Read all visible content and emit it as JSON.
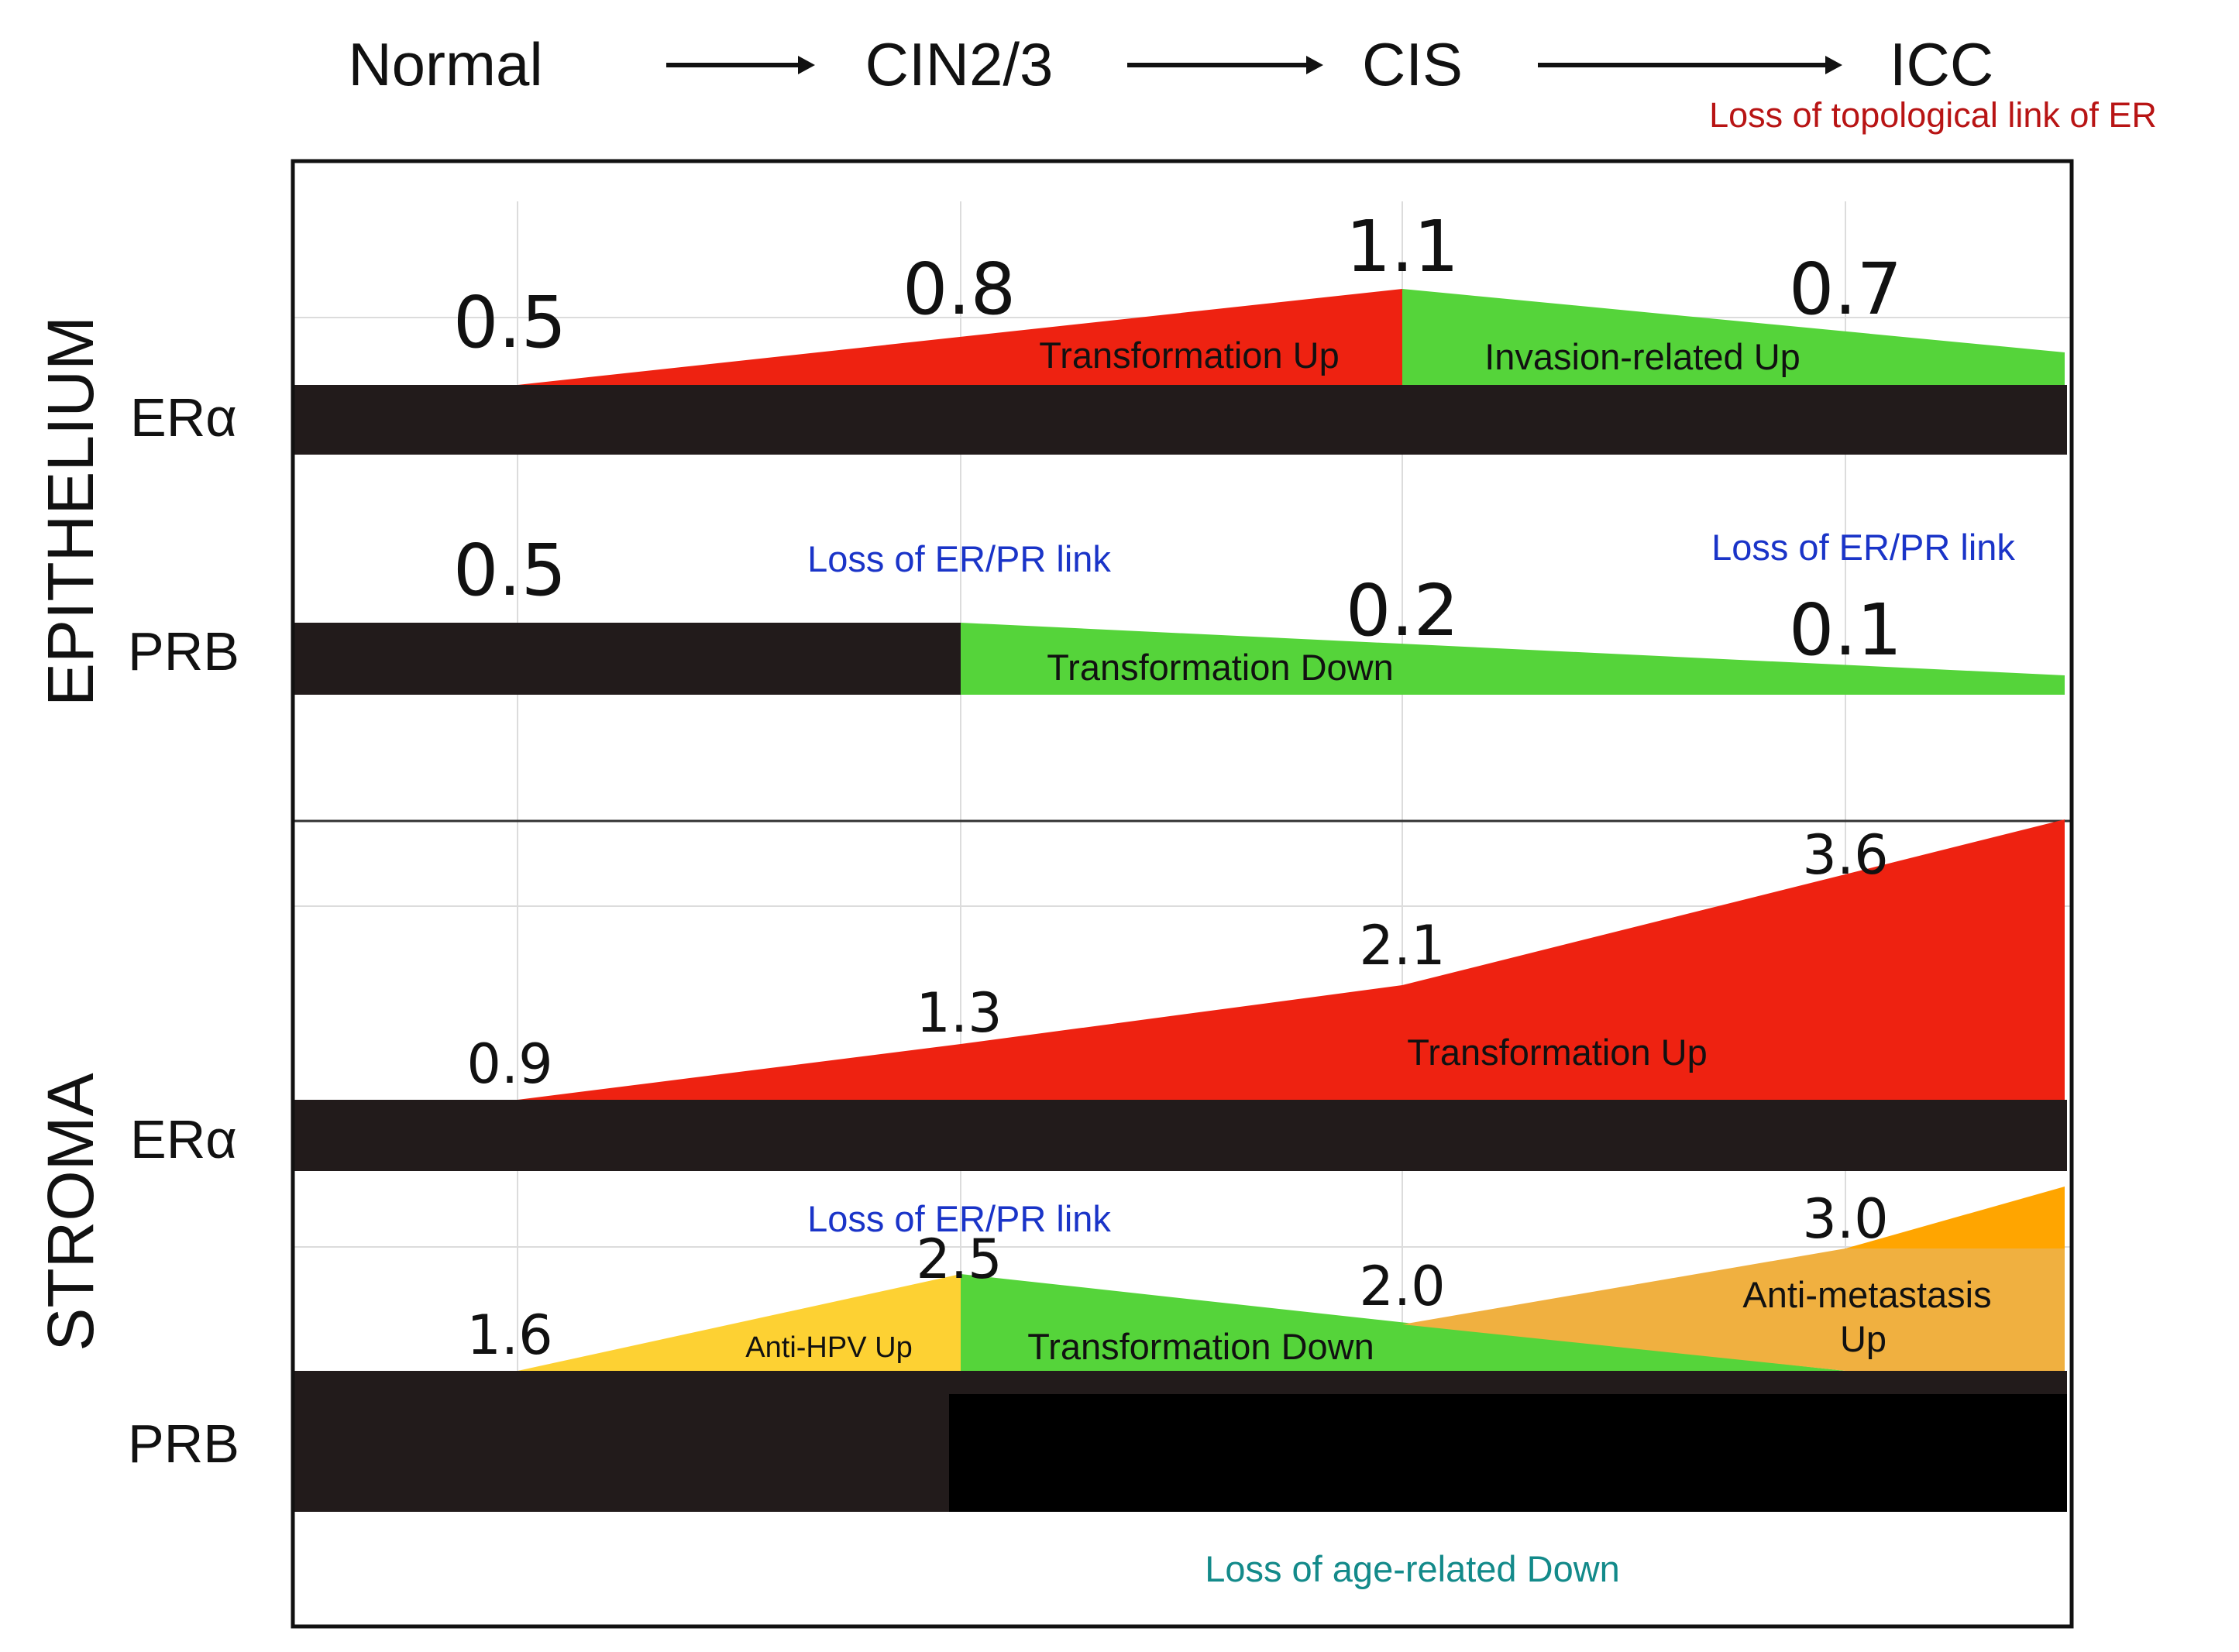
{
  "stages": [
    "Normal",
    "CIN2/3",
    "CIS",
    "ICC"
  ],
  "stage_note": "Loss of topological link of ER",
  "tissues": [
    "EPITHELIUM",
    "STROMA"
  ],
  "colors": {
    "up_red": "#ee2211",
    "down_green": "#55d43a",
    "anti_hpv_yellow": "#fdd133",
    "anti_meta_orange": "#f0b040",
    "anti_meta_tip": "#ffa500",
    "bar_dark": "#221b1b",
    "bar_black": "#000000",
    "note_red": "#b81414",
    "note_blue": "#1a34c8",
    "note_teal": "#138a8a",
    "frame": "#111111"
  },
  "tracks": {
    "epi_er": {
      "label": "ERα",
      "values": [
        "0.5",
        "0.8",
        "1.1",
        "0.7"
      ],
      "annotations": [
        "Transformation Up",
        "Invasion-related Up"
      ]
    },
    "epi_prb": {
      "label": "PRB",
      "values": [
        "0.5",
        "0.2",
        "0.1"
      ],
      "annotations": [
        "Transformation Down"
      ],
      "notes": [
        "Loss of ER/PR link",
        "Loss of ER/PR link"
      ]
    },
    "str_er": {
      "label": "ERα",
      "values": [
        "0.9",
        "1.3",
        "2.1",
        "3.6"
      ],
      "annotations": [
        "Transformation Up"
      ]
    },
    "str_prb": {
      "label": "PRB",
      "values": [
        "1.6",
        "2.5",
        "2.0",
        "3.0"
      ],
      "annotations": [
        "Anti-HPV Up",
        "Transformation Down",
        "Anti-metastasis",
        "Up"
      ],
      "notes": [
        "Loss of ER/PR link",
        "Loss of age-related Down"
      ]
    }
  }
}
